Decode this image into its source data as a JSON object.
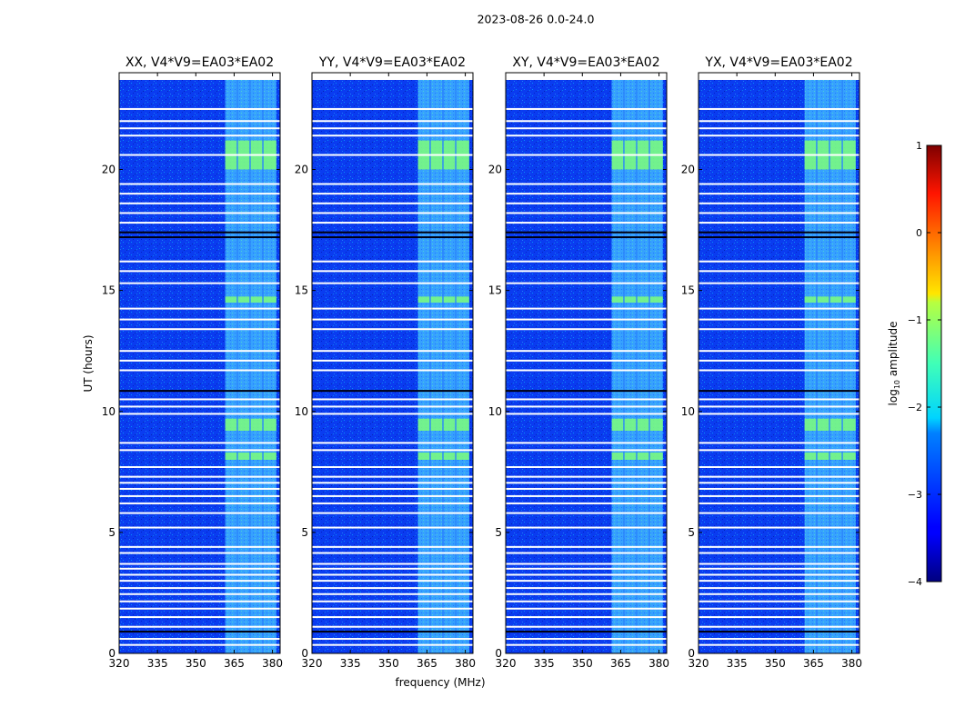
{
  "figure_title": "2023-08-26 0.0-24.0",
  "chart_data": {
    "type": "heatmap",
    "suptitle": "2023-08-26 0.0-24.0",
    "xlabel": "frequency (MHz)",
    "ylabel": "UT (hours)",
    "xlim": [
      320,
      383
    ],
    "ylim": [
      0,
      24
    ],
    "xticks": [
      320,
      335,
      350,
      365,
      380
    ],
    "yticks": [
      0,
      5,
      10,
      15,
      20
    ],
    "panels": [
      {
        "title": "XX, V4*V9=EA03*EA02",
        "pol": "XX"
      },
      {
        "title": "YY, V4*V9=EA03*EA02",
        "pol": "YY"
      },
      {
        "title": "XY, V4*V9=EA03*EA02",
        "pol": "XY"
      },
      {
        "title": "YX, V4*V9=EA03*EA02",
        "pol": "YX"
      }
    ],
    "data_coverage_hours": [
      0,
      23.7
    ],
    "rfi_band_mhz": [
      361.5,
      381.5
    ],
    "rfi_subbands_mhz": [
      [
        361.5,
        366
      ],
      [
        366.5,
        371
      ],
      [
        371.5,
        376
      ],
      [
        376.5,
        381.5
      ]
    ],
    "strong_rfi_hours": [
      [
        8.0,
        8.3
      ],
      [
        9.2,
        9.7
      ],
      [
        14.5,
        14.75
      ],
      [
        20.0,
        21.2
      ]
    ],
    "blank_rows_hours": [
      0.35,
      0.6,
      1.1,
      1.5,
      1.85,
      2.15,
      2.45,
      2.7,
      3.0,
      3.25,
      3.5,
      3.7,
      4.15,
      4.4,
      5.2,
      5.8,
      6.2,
      6.5,
      6.8,
      7.05,
      7.3,
      7.7,
      8.4,
      8.7,
      9.9,
      10.2,
      10.5,
      11.7,
      12.1,
      12.5,
      13.4,
      13.8,
      14.25,
      15.3,
      15.8,
      16.2,
      17.8,
      18.2,
      18.6,
      19.0,
      19.4,
      20.6,
      21.4,
      21.7,
      22.0,
      22.5
    ],
    "dark_rows_hours": [
      0.9,
      10.85,
      17.2,
      17.4
    ],
    "colorbar": {
      "label": "log10 amplitude",
      "label_main": "log",
      "label_sub": "10",
      "label_rest": " amplitude",
      "range": [
        -4,
        1
      ],
      "ticks": [
        "−4",
        "−3",
        "−2",
        "−1",
        "0",
        "1"
      ],
      "tick_values": [
        -4,
        -3,
        -2,
        -1,
        0,
        1
      ],
      "colormap": "jet"
    }
  }
}
